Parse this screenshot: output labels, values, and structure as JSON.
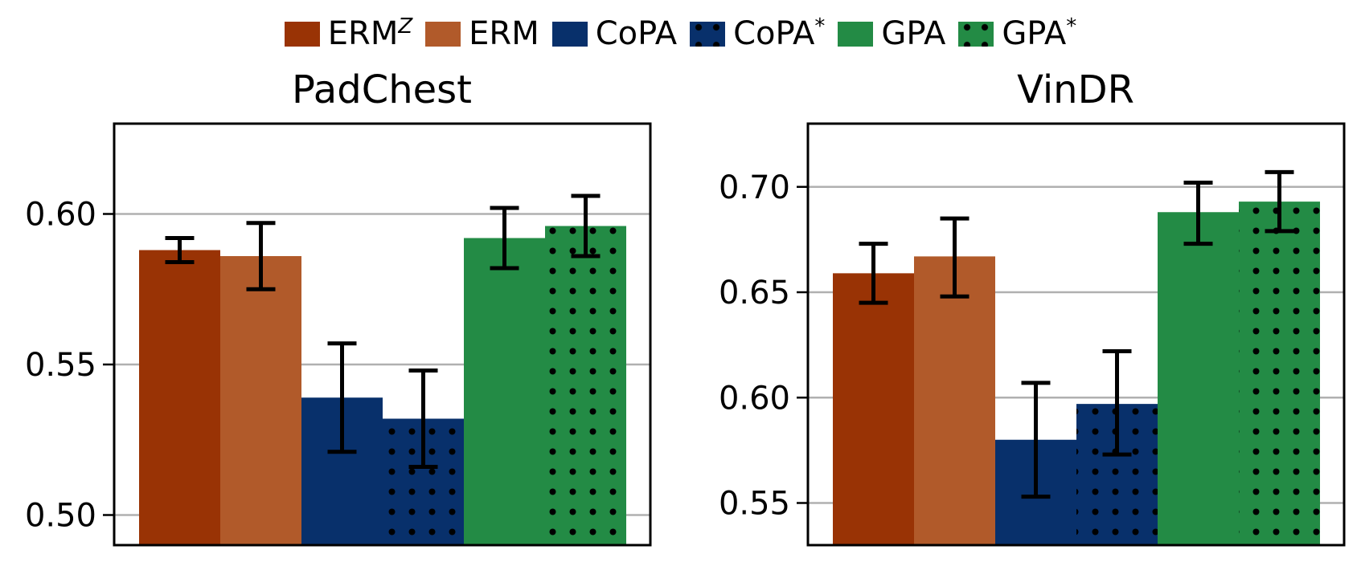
{
  "legend": {
    "items": [
      {
        "base": "ERM",
        "sup": "Z",
        "color": "#993305",
        "hatch": false
      },
      {
        "base": "ERM",
        "sup": "",
        "color": "#b15a2a",
        "hatch": false
      },
      {
        "base": "CoPA",
        "sup": "",
        "color": "#08306b",
        "hatch": false
      },
      {
        "base": "CoPA",
        "sup": "*",
        "color": "#08306b",
        "hatch": true
      },
      {
        "base": "GPA",
        "sup": "",
        "color": "#238b45",
        "hatch": false
      },
      {
        "base": "GPA",
        "sup": "*",
        "color": "#238b45",
        "hatch": true
      }
    ]
  },
  "chart_data": [
    {
      "type": "bar",
      "title": "PadChest",
      "xlabel": "",
      "ylabel": "",
      "ylim": [
        0.49,
        0.63
      ],
      "yticks": [
        0.5,
        0.55,
        0.6
      ],
      "ytick_labels": [
        "0.50",
        "0.55",
        "0.60"
      ],
      "grid": true,
      "categories": [
        "ERM^Z",
        "ERM",
        "CoPA",
        "CoPA*",
        "GPA",
        "GPA*"
      ],
      "values": [
        0.588,
        0.586,
        0.539,
        0.532,
        0.592,
        0.596
      ],
      "error_low": [
        0.584,
        0.575,
        0.521,
        0.516,
        0.582,
        0.586
      ],
      "error_high": [
        0.592,
        0.597,
        0.557,
        0.548,
        0.602,
        0.606
      ]
    },
    {
      "type": "bar",
      "title": "VinDR",
      "xlabel": "",
      "ylabel": "",
      "ylim": [
        0.53,
        0.73
      ],
      "yticks": [
        0.55,
        0.6,
        0.65,
        0.7
      ],
      "ytick_labels": [
        "0.55",
        "0.60",
        "0.65",
        "0.70"
      ],
      "grid": true,
      "categories": [
        "ERM^Z",
        "ERM",
        "CoPA",
        "CoPA*",
        "GPA",
        "GPA*"
      ],
      "values": [
        0.659,
        0.667,
        0.58,
        0.597,
        0.688,
        0.693
      ],
      "error_low": [
        0.645,
        0.648,
        0.553,
        0.573,
        0.673,
        0.679
      ],
      "error_high": [
        0.673,
        0.685,
        0.607,
        0.622,
        0.702,
        0.707
      ]
    }
  ]
}
